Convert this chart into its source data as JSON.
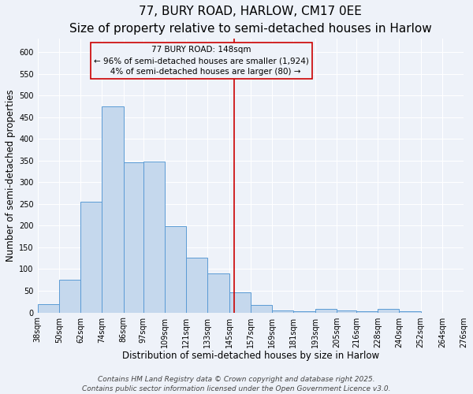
{
  "title": "77, BURY ROAD, HARLOW, CM17 0EE",
  "subtitle": "Size of property relative to semi-detached houses in Harlow",
  "xlabel": "Distribution of semi-detached houses by size in Harlow",
  "ylabel": "Number of semi-detached properties",
  "bar_edges": [
    38,
    50,
    62,
    74,
    86,
    97,
    109,
    121,
    133,
    145,
    157,
    169,
    181,
    193,
    205,
    216,
    228,
    240,
    252,
    264,
    276
  ],
  "bar_heights": [
    20,
    75,
    255,
    475,
    345,
    347,
    198,
    127,
    90,
    47,
    17,
    5,
    3,
    8,
    5,
    3,
    8,
    3,
    0,
    0
  ],
  "bar_color": "#c5d8ed",
  "bar_edgecolor": "#5b9bd5",
  "vline_x": 148,
  "vline_color": "#cc0000",
  "annotation_line1": "77 BURY ROAD: 148sqm",
  "annotation_line2": "← 96% of semi-detached houses are smaller (1,924)",
  "annotation_line3": "   4% of semi-detached houses are larger (80) →",
  "annotation_box_edgecolor": "#cc0000",
  "ylim": [
    0,
    630
  ],
  "yticks": [
    0,
    50,
    100,
    150,
    200,
    250,
    300,
    350,
    400,
    450,
    500,
    550,
    600
  ],
  "tick_labels": [
    "38sqm",
    "50sqm",
    "62sqm",
    "74sqm",
    "86sqm",
    "97sqm",
    "109sqm",
    "121sqm",
    "133sqm",
    "145sqm",
    "157sqm",
    "169sqm",
    "181sqm",
    "193sqm",
    "205sqm",
    "216sqm",
    "228sqm",
    "240sqm",
    "252sqm",
    "264sqm",
    "276sqm"
  ],
  "background_color": "#eef2f9",
  "grid_color": "#ffffff",
  "footer_line1": "Contains HM Land Registry data © Crown copyright and database right 2025.",
  "footer_line2": "Contains public sector information licensed under the Open Government Licence v3.0.",
  "title_fontsize": 11,
  "subtitle_fontsize": 9.5,
  "axis_label_fontsize": 8.5,
  "tick_fontsize": 7,
  "annotation_fontsize": 7.5,
  "footer_fontsize": 6.5
}
